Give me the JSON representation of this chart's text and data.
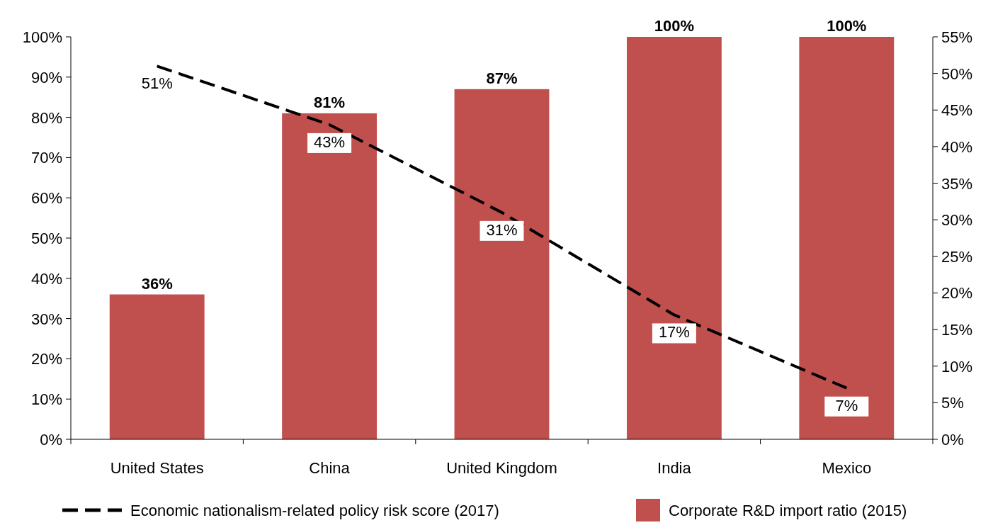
{
  "chart_data": {
    "type": "bar",
    "categories": [
      "United States",
      "China",
      "United Kingdom",
      "India",
      "Mexico"
    ],
    "series": [
      {
        "name": "Economic nationalism-related policy risk score  (2017)",
        "type": "line",
        "axis": "y2",
        "color": "#000000",
        "line_style": "dashed",
        "values": [
          51,
          43,
          31,
          17,
          7
        ],
        "value_labels": [
          "51%",
          "43%",
          "31%",
          "17%",
          "7%"
        ]
      },
      {
        "name": "Corporate R&D import ratio (2015)",
        "color": "#c0504d",
        "values": [
          36,
          81,
          87,
          100,
          100
        ],
        "value_labels": [
          "36%",
          "81%",
          "87%",
          "100%",
          "100%"
        ]
      }
    ],
    "ylim": [
      0,
      100
    ],
    "yticks": [
      {
        "value": 0,
        "label": "0%"
      },
      {
        "value": 10,
        "label": "10%"
      },
      {
        "value": 20,
        "label": "20%"
      },
      {
        "value": 30,
        "label": "30%"
      },
      {
        "value": 40,
        "label": "40%"
      },
      {
        "value": 50,
        "label": "50%"
      },
      {
        "value": 60,
        "label": "60%"
      },
      {
        "value": 70,
        "label": "70%"
      },
      {
        "value": 80,
        "label": "80%"
      },
      {
        "value": 90,
        "label": "90%"
      },
      {
        "value": 100,
        "label": "100%"
      }
    ],
    "y2lim": [
      0,
      55
    ],
    "y2ticks": [
      {
        "value": 0,
        "label": "0%"
      },
      {
        "value": 5,
        "label": "5%"
      },
      {
        "value": 10,
        "label": "10%"
      },
      {
        "value": 15,
        "label": "15%"
      },
      {
        "value": 20,
        "label": "20%"
      },
      {
        "value": 25,
        "label": "25%"
      },
      {
        "value": 30,
        "label": "30%"
      },
      {
        "value": 35,
        "label": "35%"
      },
      {
        "value": 40,
        "label": "40%"
      },
      {
        "value": 45,
        "label": "45%"
      },
      {
        "value": 50,
        "label": "50%"
      },
      {
        "value": 55,
        "label": "55%"
      }
    ],
    "legend": "bottom"
  }
}
